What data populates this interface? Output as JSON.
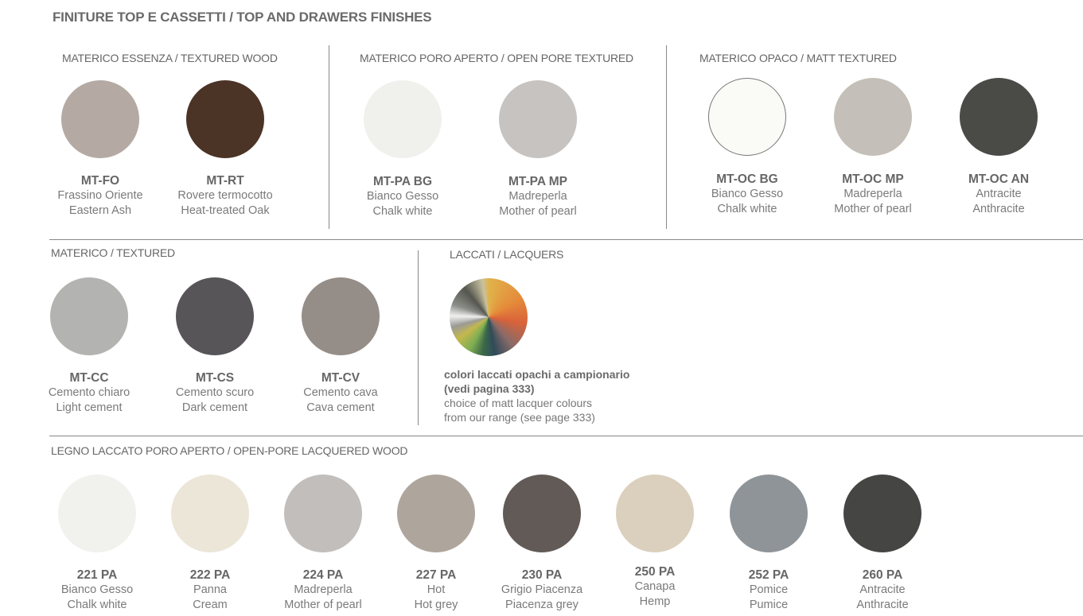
{
  "title": "FINITURE TOP E CASSETTI /  TOP AND DRAWERS FINISHES",
  "sections": [
    {
      "header": "MATERICO ESSENZA / TEXTURED WOOD",
      "items": [
        {
          "code": "MT-FO",
          "it": "Frassino Oriente",
          "en": "Eastern Ash",
          "color": "#b4aaa3"
        },
        {
          "code": "MT-RT",
          "it": "Rovere termocotto",
          "en": "Heat-treated Oak",
          "color": "#4b3326"
        }
      ]
    },
    {
      "header": "MATERICO PORO APERTO / OPEN PORE TEXTURED",
      "items": [
        {
          "code": "MT-PA BG",
          "it": "Bianco Gesso",
          "en": "Chalk white",
          "color": "#f0f0ec"
        },
        {
          "code": "MT-PA MP",
          "it": "Madreperla",
          "en": "Mother of pearl",
          "color": "#c6c3c0"
        }
      ]
    },
    {
      "header": "MATERICO OPACO / MATT TEXTURED",
      "items": [
        {
          "code": "MT-OC BG",
          "it": "Bianco Gesso",
          "en": "Chalk white",
          "color": "#fafaf6"
        },
        {
          "code": "MT-OC MP",
          "it": "Madreperla",
          "en": "Mother of pearl",
          "color": "#c4bfb8"
        },
        {
          "code": "MT-OC AN",
          "it": "Antracite",
          "en": "Anthracite",
          "color": "#4a4a46"
        }
      ]
    },
    {
      "header": "MATERICO / TEXTURED",
      "items": [
        {
          "code": "MT-CC",
          "it": "Cemento chiaro",
          "en": "Light cement",
          "color": "#b3b3b1"
        },
        {
          "code": "MT-CS",
          "it": "Cemento scuro",
          "en": "Dark cement",
          "color": "#575558"
        },
        {
          "code": "MT-CV",
          "it": "Cemento cava",
          "en": "Cava cement",
          "color": "#958d88"
        }
      ]
    },
    {
      "header": "LEGNO LACCATO PORO APERTO / OPEN-PORE LACQUERED WOOD",
      "items": [
        {
          "code": "221 PA",
          "it": "Bianco Gesso",
          "en": "Chalk white",
          "color": "#f1f1ee"
        },
        {
          "code": "222 PA",
          "it": "Panna",
          "en": "Cream",
          "color": "#ebe6d8"
        },
        {
          "code": "224 PA",
          "it": "Madreperla",
          "en": "Mother of pearl",
          "color": "#c2bebb"
        },
        {
          "code": "227 PA",
          "it": "Hot",
          "en": "Hot grey",
          "color": "#aea59d"
        },
        {
          "code": "230 PA",
          "it": "Grigio Piacenza",
          "en": "Piacenza grey",
          "color": "#625a56"
        },
        {
          "code": "250 PA",
          "it": "Canapa",
          "en": "Hemp",
          "color": "#dad0bd"
        },
        {
          "code": "252 PA",
          "it": "Pomice",
          "en": "Pumice",
          "color": "#8f9498"
        },
        {
          "code": "260 PA",
          "it": "Antracite",
          "en": "Anthracite",
          "color": "#454543"
        }
      ]
    }
  ],
  "lacquers": {
    "header": "LACCATI / LACQUERS",
    "line1": "colori laccati opachi a campionario",
    "line2": "(vedi pagina 333)",
    "line3": "choice of matt lacquer colours",
    "line4": "from our range (see page 333)"
  }
}
